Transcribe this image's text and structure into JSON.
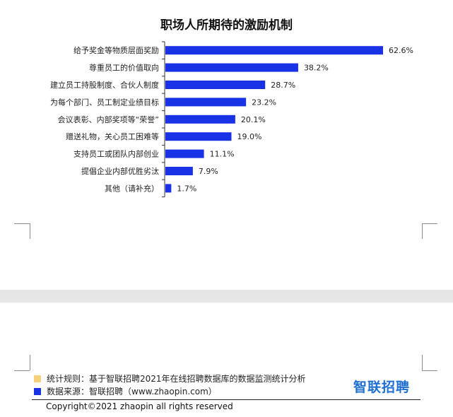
{
  "chart_data": {
    "type": "bar",
    "orientation": "horizontal",
    "title": "职场人所期待的激励机制",
    "categories": [
      "给予奖金等物质层面奖励",
      "尊重员工的价值取向",
      "建立员工持股制度、合伙人制度",
      "为每个部门、员工制定业绩目标",
      "会议表彰、内部奖项等“荣誉”",
      "赠送礼物，关心员工困难等",
      "支持员工或团队内部创业",
      "提倡企业内部优胜劣汰",
      "其他（请补充）"
    ],
    "values": [
      62.6,
      38.2,
      28.7,
      23.2,
      20.1,
      19.0,
      11.1,
      7.9,
      1.7
    ],
    "value_labels": [
      "62.6%",
      "38.2%",
      "28.7%",
      "23.2%",
      "20.1%",
      "19.0%",
      "11.1%",
      "7.9%",
      "1.7%"
    ],
    "unit": "%",
    "bar_color": "#1a32e6",
    "xlim": [
      0,
      70
    ],
    "grid": false,
    "legend": "none"
  },
  "notes": {
    "rule_color": "#f5d27a",
    "rule_text": "统计规则：基于智联招聘2021年在线招聘数据库的数据监测统计分析",
    "source_color": "#1a32e6",
    "source_text": "数据来源：智联招聘（www.zhaopin.com）"
  },
  "logo_text": "智联招聘",
  "copyright": "Copyright©2021 zhaopin all rights reserved"
}
